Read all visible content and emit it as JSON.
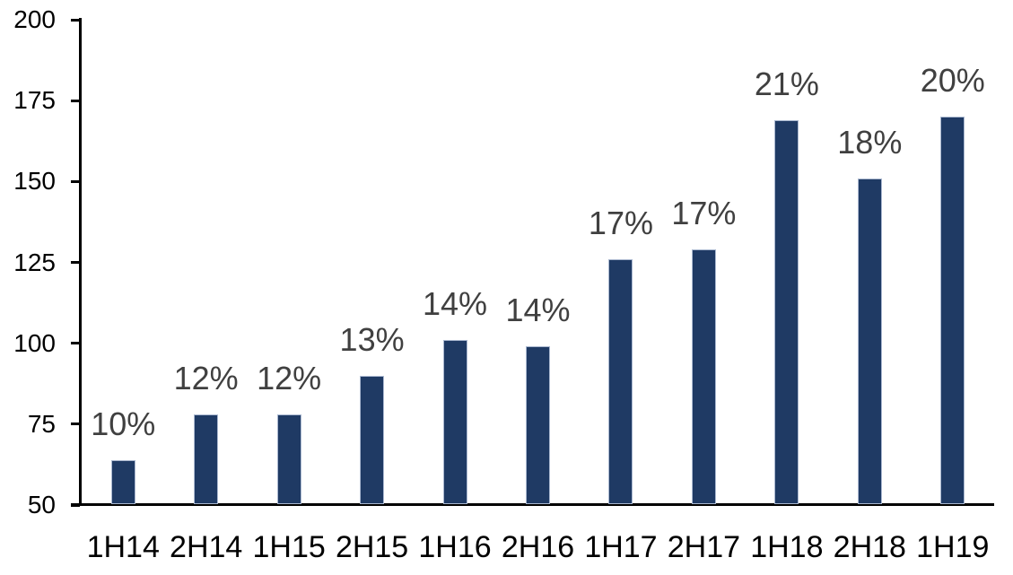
{
  "chart_data": {
    "type": "bar",
    "title": "",
    "xlabel": "",
    "ylabel": "",
    "categories": [
      "1H14",
      "2H14",
      "1H15",
      "2H15",
      "1H16",
      "2H16",
      "1H17",
      "2H17",
      "1H18",
      "2H18",
      "1H19"
    ],
    "values": [
      64,
      78,
      78,
      90,
      101,
      99,
      126,
      129,
      169,
      151,
      170
    ],
    "bar_labels": [
      "10%",
      "12%",
      "12%",
      "13%",
      "14%",
      "14%",
      "17%",
      "17%",
      "21%",
      "18%",
      "20%"
    ],
    "yticks": [
      50,
      75,
      100,
      125,
      150,
      175,
      200
    ],
    "ylim": [
      50,
      200
    ],
    "grid": false,
    "legend": false,
    "colors": {
      "bar_fill": "#1f3a64",
      "bar_border": "#aab8d0",
      "axis": "#000000",
      "tick_label": "#000000",
      "data_label": "#404040",
      "background": "#ffffff"
    }
  }
}
